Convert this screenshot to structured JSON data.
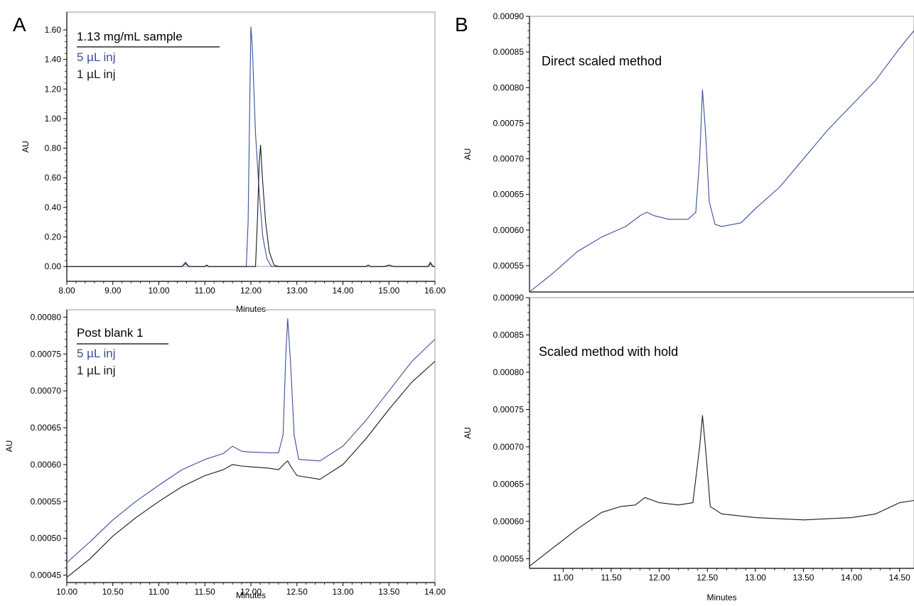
{
  "panel_labels": {
    "a": "A",
    "b": "B"
  },
  "colors": {
    "series_5uL": "#3b4f9a",
    "series_1uL": "#1a1a1a",
    "axis": "#000000",
    "frame": "#9a9a9a"
  },
  "chart_data": [
    {
      "id": "a-top",
      "type": "line",
      "legend_title": "1.13 mg/mL sample",
      "xlabel": "Minutes",
      "ylabel": "AU",
      "xlim": [
        8.0,
        16.0
      ],
      "ylim": [
        -0.1,
        1.72
      ],
      "x_ticks": [
        "8.00",
        "9.00",
        "10.00",
        "11.00",
        "12.00",
        "13.00",
        "14.00",
        "15.00",
        "16.00"
      ],
      "y_ticks": [
        "0.00",
        "0.20",
        "0.40",
        "0.60",
        "0.80",
        "1.00",
        "1.20",
        "1.40",
        "1.60"
      ],
      "series": [
        {
          "name": "5 µL inj",
          "color": "#3b4f9a",
          "points": [
            [
              8.0,
              0
            ],
            [
              10.5,
              0
            ],
            [
              10.58,
              0.03
            ],
            [
              10.65,
              0
            ],
            [
              11.0,
              0
            ],
            [
              11.04,
              0.01
            ],
            [
              11.08,
              0
            ],
            [
              11.9,
              0
            ],
            [
              11.94,
              0.3
            ],
            [
              11.97,
              1.0
            ],
            [
              12.0,
              1.62
            ],
            [
              12.03,
              1.5
            ],
            [
              12.1,
              0.9
            ],
            [
              12.18,
              0.5
            ],
            [
              12.26,
              0.2
            ],
            [
              12.35,
              0.05
            ],
            [
              12.45,
              0.0
            ],
            [
              14.5,
              0
            ],
            [
              14.55,
              0.01
            ],
            [
              14.6,
              0
            ],
            [
              14.9,
              0
            ],
            [
              15.0,
              0.01
            ],
            [
              15.1,
              0
            ],
            [
              15.85,
              0
            ],
            [
              15.9,
              0.03
            ],
            [
              15.96,
              0
            ],
            [
              16.0,
              0
            ]
          ]
        },
        {
          "name": "1 µL inj",
          "color": "#1a1a1a",
          "points": [
            [
              8.0,
              0
            ],
            [
              10.5,
              0
            ],
            [
              10.58,
              0.02
            ],
            [
              10.65,
              0
            ],
            [
              11.0,
              0
            ],
            [
              11.04,
              0.01
            ],
            [
              11.08,
              0
            ],
            [
              12.1,
              0
            ],
            [
              12.14,
              0.3
            ],
            [
              12.18,
              0.7
            ],
            [
              12.21,
              0.82
            ],
            [
              12.25,
              0.6
            ],
            [
              12.32,
              0.3
            ],
            [
              12.4,
              0.1
            ],
            [
              12.5,
              0.01
            ],
            [
              12.6,
              0
            ],
            [
              14.5,
              0
            ],
            [
              14.55,
              0.01
            ],
            [
              14.6,
              0
            ],
            [
              14.9,
              0
            ],
            [
              15.0,
              0.01
            ],
            [
              15.1,
              0
            ],
            [
              15.85,
              0
            ],
            [
              15.9,
              0.02
            ],
            [
              15.96,
              0
            ],
            [
              16.0,
              0
            ]
          ]
        }
      ]
    },
    {
      "id": "a-bottom",
      "type": "line",
      "legend_title": "Post blank 1",
      "xlabel": "Minutes",
      "ylabel": "AU",
      "xlim": [
        10.0,
        14.0
      ],
      "ylim": [
        0.00044,
        0.00081
      ],
      "x_ticks": [
        "10.00",
        "10.50",
        "11.00",
        "11.50",
        "12.00",
        "12.50",
        "13.00",
        "13.50",
        "14.00"
      ],
      "y_ticks": [
        "0.00045",
        "0.00050",
        "0.00055",
        "0.00060",
        "0.00065",
        "0.00070",
        "0.00075",
        "0.00080"
      ],
      "series": [
        {
          "name": "5 µL inj",
          "color": "#3b4f9a",
          "points": [
            [
              10.0,
              0.000467
            ],
            [
              10.25,
              0.000495
            ],
            [
              10.5,
              0.000525
            ],
            [
              10.75,
              0.00055
            ],
            [
              11.0,
              0.000572
            ],
            [
              11.25,
              0.000593
            ],
            [
              11.5,
              0.000607
            ],
            [
              11.7,
              0.000615
            ],
            [
              11.8,
              0.000625
            ],
            [
              11.9,
              0.000618
            ],
            [
              12.0,
              0.000617
            ],
            [
              12.2,
              0.000616
            ],
            [
              12.3,
              0.000616
            ],
            [
              12.35,
              0.00064
            ],
            [
              12.38,
              0.00075
            ],
            [
              12.4,
              0.000798
            ],
            [
              12.43,
              0.00074
            ],
            [
              12.47,
              0.00064
            ],
            [
              12.52,
              0.000607
            ],
            [
              12.75,
              0.000605
            ],
            [
              13.0,
              0.000625
            ],
            [
              13.25,
              0.00066
            ],
            [
              13.5,
              0.0007
            ],
            [
              13.75,
              0.00074
            ],
            [
              14.0,
              0.00077
            ]
          ]
        },
        {
          "name": "1 µL inj",
          "color": "#1a1a1a",
          "points": [
            [
              10.0,
              0.000447
            ],
            [
              10.25,
              0.000472
            ],
            [
              10.5,
              0.000503
            ],
            [
              10.75,
              0.000528
            ],
            [
              11.0,
              0.00055
            ],
            [
              11.25,
              0.00057
            ],
            [
              11.5,
              0.000585
            ],
            [
              11.7,
              0.000593
            ],
            [
              11.8,
              0.0006
            ],
            [
              11.9,
              0.000598
            ],
            [
              12.0,
              0.000597
            ],
            [
              12.2,
              0.000595
            ],
            [
              12.3,
              0.000593
            ],
            [
              12.38,
              0.000603
            ],
            [
              12.4,
              0.000605
            ],
            [
              12.43,
              0.000598
            ],
            [
              12.5,
              0.000585
            ],
            [
              12.75,
              0.00058
            ],
            [
              13.0,
              0.0006
            ],
            [
              13.25,
              0.000635
            ],
            [
              13.5,
              0.000675
            ],
            [
              13.75,
              0.000712
            ],
            [
              14.0,
              0.00074
            ]
          ]
        }
      ]
    },
    {
      "id": "b-top",
      "type": "line",
      "annotation": "Direct scaled method",
      "ylabel": "AU",
      "xlim": [
        10.65,
        14.65
      ],
      "ylim": [
        0.000513,
        0.0009
      ],
      "y_ticks": [
        "0.00055",
        "0.00060",
        "0.00065",
        "0.00070",
        "0.00075",
        "0.00080",
        "0.00085",
        "0.00090"
      ],
      "series": [
        {
          "color": "#3b4f9a",
          "points": [
            [
              10.65,
              0.000513
            ],
            [
              10.9,
              0.00054
            ],
            [
              11.15,
              0.00057
            ],
            [
              11.4,
              0.00059
            ],
            [
              11.65,
              0.000605
            ],
            [
              11.8,
              0.00062
            ],
            [
              11.87,
              0.000625
            ],
            [
              11.95,
              0.00062
            ],
            [
              12.1,
              0.000615
            ],
            [
              12.3,
              0.000615
            ],
            [
              12.38,
              0.000625
            ],
            [
              12.42,
              0.0007
            ],
            [
              12.45,
              0.000797
            ],
            [
              12.48,
              0.00074
            ],
            [
              12.52,
              0.00064
            ],
            [
              12.58,
              0.000608
            ],
            [
              12.65,
              0.000605
            ],
            [
              12.85,
              0.00061
            ],
            [
              13.0,
              0.00063
            ],
            [
              13.25,
              0.00066
            ],
            [
              13.5,
              0.0007
            ],
            [
              13.75,
              0.00074
            ],
            [
              14.0,
              0.000775
            ],
            [
              14.25,
              0.00081
            ],
            [
              14.5,
              0.000855
            ],
            [
              14.65,
              0.00088
            ]
          ]
        }
      ]
    },
    {
      "id": "b-bottom",
      "type": "line",
      "annotation": "Scaled method with hold",
      "xlabel": "Minutes",
      "ylabel": "AU",
      "xlim": [
        10.65,
        14.65
      ],
      "ylim": [
        0.000537,
        0.0009
      ],
      "x_ticks": [
        "11.00",
        "11.50",
        "12.00",
        "12.50",
        "13.00",
        "13.50",
        "14.00",
        "14.50"
      ],
      "x_tick_values": [
        11.0,
        11.5,
        12.0,
        12.5,
        13.0,
        13.5,
        14.0,
        14.5
      ],
      "y_ticks": [
        "0.00055",
        "0.00060",
        "0.00065",
        "0.00070",
        "0.00075",
        "0.00080",
        "0.00085",
        "0.00090"
      ],
      "series": [
        {
          "color": "#1a1a1a",
          "points": [
            [
              10.65,
              0.00054
            ],
            [
              10.9,
              0.000565
            ],
            [
              11.15,
              0.00059
            ],
            [
              11.4,
              0.000612
            ],
            [
              11.6,
              0.00062
            ],
            [
              11.75,
              0.000622
            ],
            [
              11.85,
              0.000632
            ],
            [
              12.0,
              0.000625
            ],
            [
              12.2,
              0.000622
            ],
            [
              12.35,
              0.000625
            ],
            [
              12.42,
              0.0007
            ],
            [
              12.45,
              0.000742
            ],
            [
              12.48,
              0.0007
            ],
            [
              12.53,
              0.00062
            ],
            [
              12.65,
              0.00061
            ],
            [
              13.0,
              0.000605
            ],
            [
              13.5,
              0.000602
            ],
            [
              14.0,
              0.000605
            ],
            [
              14.25,
              0.00061
            ],
            [
              14.5,
              0.000625
            ],
            [
              14.65,
              0.000628
            ]
          ]
        }
      ]
    }
  ]
}
